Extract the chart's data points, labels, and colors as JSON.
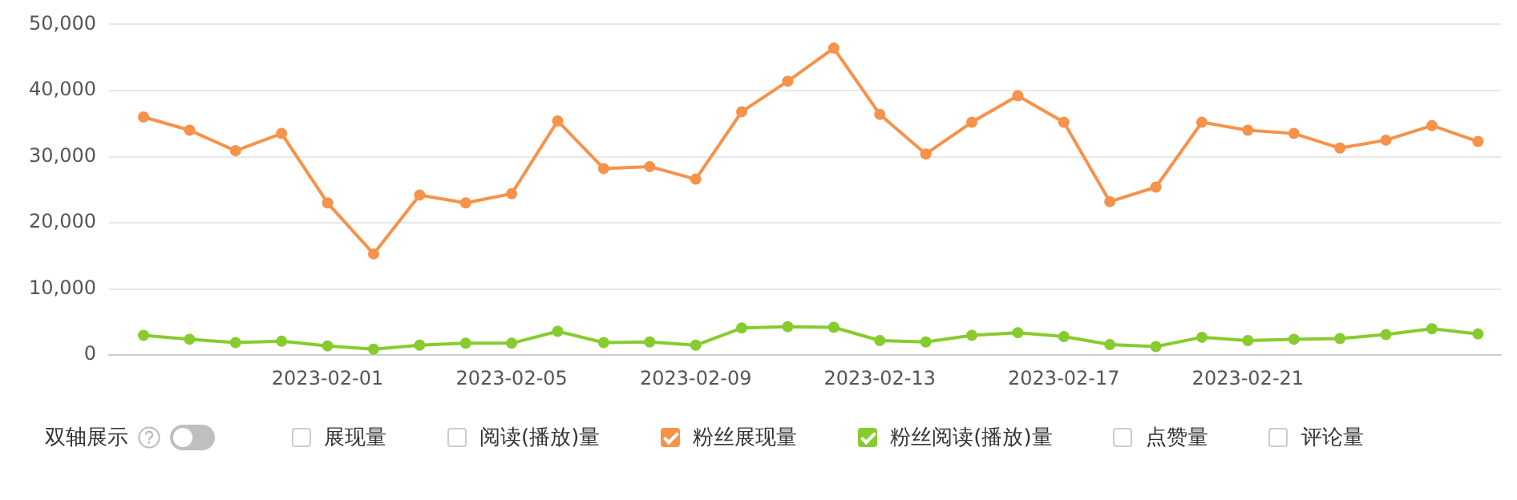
{
  "chart_data": {
    "type": "line",
    "annotations": [
      "双轴展示"
    ],
    "x": [
      "2023-01-28",
      "2023-01-29",
      "2023-01-30",
      "2023-01-31",
      "2023-02-01",
      "2023-02-02",
      "2023-02-03",
      "2023-02-04",
      "2023-02-05",
      "2023-02-06",
      "2023-02-07",
      "2023-02-08",
      "2023-02-09",
      "2023-02-10",
      "2023-02-11",
      "2023-02-12",
      "2023-02-13",
      "2023-02-14",
      "2023-02-15",
      "2023-02-16",
      "2023-02-17",
      "2023-02-18",
      "2023-02-19",
      "2023-02-20",
      "2023-02-21",
      "2023-02-22",
      "2023-02-23",
      "2023-02-24",
      "2023-02-25",
      "2023-02-26"
    ],
    "series": [
      {
        "name": "展现量",
        "color": "#d9d9d9",
        "values": [
          null,
          null,
          null,
          null,
          null,
          null,
          null,
          null,
          null,
          null,
          null,
          null,
          null,
          null,
          null,
          null,
          null,
          null,
          null,
          null,
          null,
          null,
          null,
          null,
          null,
          null,
          null,
          null,
          null,
          null
        ]
      },
      {
        "name": "阅读(播放)量",
        "color": "#d9d9d9",
        "values": [
          null,
          null,
          null,
          null,
          null,
          null,
          null,
          null,
          null,
          null,
          null,
          null,
          null,
          null,
          null,
          null,
          null,
          null,
          null,
          null,
          null,
          null,
          null,
          null,
          null,
          null,
          null,
          null,
          null,
          null
        ]
      },
      {
        "name": "粉丝展现量",
        "color": "#f7924a",
        "values": [
          36000,
          34000,
          30900,
          33500,
          23000,
          15300,
          24200,
          23000,
          24400,
          35400,
          28200,
          28500,
          26600,
          36800,
          41400,
          46400,
          36400,
          30400,
          35200,
          39200,
          35200,
          23200,
          25400,
          35200,
          34000,
          33500,
          31300,
          32500,
          34700,
          32300
        ]
      },
      {
        "name": "粉丝阅读(播放)量",
        "color": "#86cc2e",
        "values": [
          3000,
          2400,
          1900,
          2100,
          1400,
          900,
          1500,
          1800,
          1800,
          3600,
          1900,
          2000,
          1500,
          4100,
          4300,
          4200,
          2200,
          2000,
          3000,
          3400,
          2800,
          1600,
          1300,
          2700,
          2200,
          2400,
          2500,
          3100,
          4000,
          3200
        ]
      },
      {
        "name": "点赞量",
        "color": "#d9d9d9",
        "values": [
          null,
          null,
          null,
          null,
          null,
          null,
          null,
          null,
          null,
          null,
          null,
          null,
          null,
          null,
          null,
          null,
          null,
          null,
          null,
          null,
          null,
          null,
          null,
          null,
          null,
          null,
          null,
          null,
          null,
          null
        ]
      },
      {
        "name": "评论量",
        "color": "#d9d9d9",
        "values": [
          null,
          null,
          null,
          null,
          null,
          null,
          null,
          null,
          null,
          null,
          null,
          null,
          null,
          null,
          null,
          null,
          null,
          null,
          null,
          null,
          null,
          null,
          null,
          null,
          null,
          null,
          null,
          null,
          null,
          null
        ]
      }
    ],
    "xlim": [
      "2023-01-27T06:00",
      "2023-02-26T12:00"
    ],
    "xticks": [
      "2023-02-01",
      "2023-02-05",
      "2023-02-09",
      "2023-02-13",
      "2023-02-17",
      "2023-02-21"
    ],
    "ylim": [
      0,
      50000
    ],
    "yticks": [
      0,
      {
        "value": 10000,
        "label": "10,000"
      },
      {
        "value": 20000,
        "label": "20,000"
      },
      {
        "value": 30000,
        "label": "30,000"
      },
      {
        "value": 40000,
        "label": "40,000"
      },
      {
        "value": 50000,
        "label": "50,000"
      }
    ],
    "grid": "y",
    "legend": "bottom",
    "marker": "circle",
    "line_style": "solid"
  }
}
